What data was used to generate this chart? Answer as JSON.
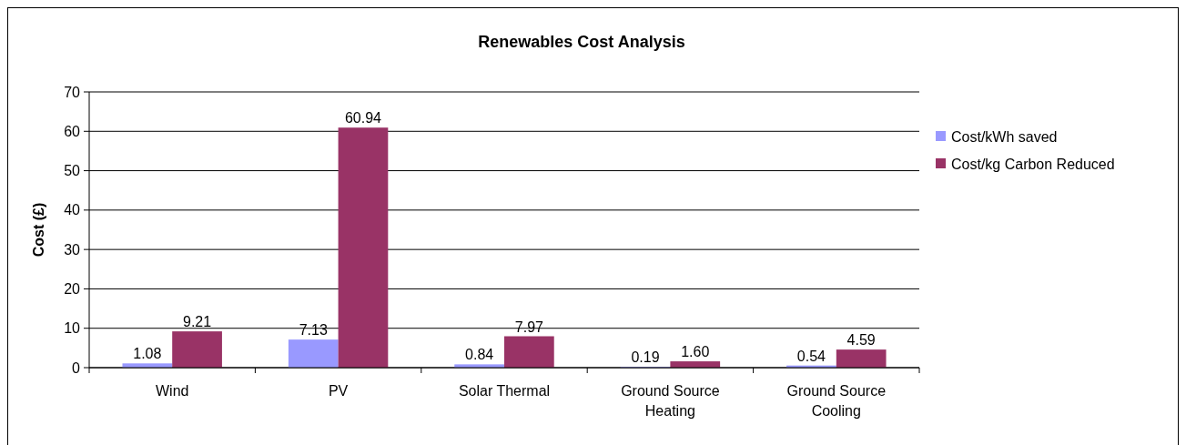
{
  "chart_data": {
    "type": "bar",
    "title": "Renewables Cost Analysis",
    "ylabel": "Cost (£)",
    "categories": [
      "Wind",
      "PV",
      "Solar Thermal",
      "Ground Source Heating",
      "Ground Source Cooling"
    ],
    "series": [
      {
        "name": "Cost/kWh saved",
        "color": "#9999ff",
        "values": [
          1.08,
          7.13,
          0.84,
          0.19,
          0.54
        ],
        "value_labels": [
          "1.08",
          "7.13",
          "0.84",
          "0.19",
          "0.54"
        ]
      },
      {
        "name": "Cost/kg Carbon Reduced",
        "color": "#993366",
        "values": [
          9.21,
          60.94,
          7.97,
          1.6,
          4.59
        ],
        "value_labels": [
          "9.21",
          "60.94",
          "7.97",
          "1.60",
          "4.59"
        ]
      }
    ],
    "ylim": [
      0,
      70
    ],
    "yticks": [
      0,
      10,
      20,
      30,
      40,
      50,
      60,
      70
    ],
    "grid": "y",
    "legend": "right"
  }
}
